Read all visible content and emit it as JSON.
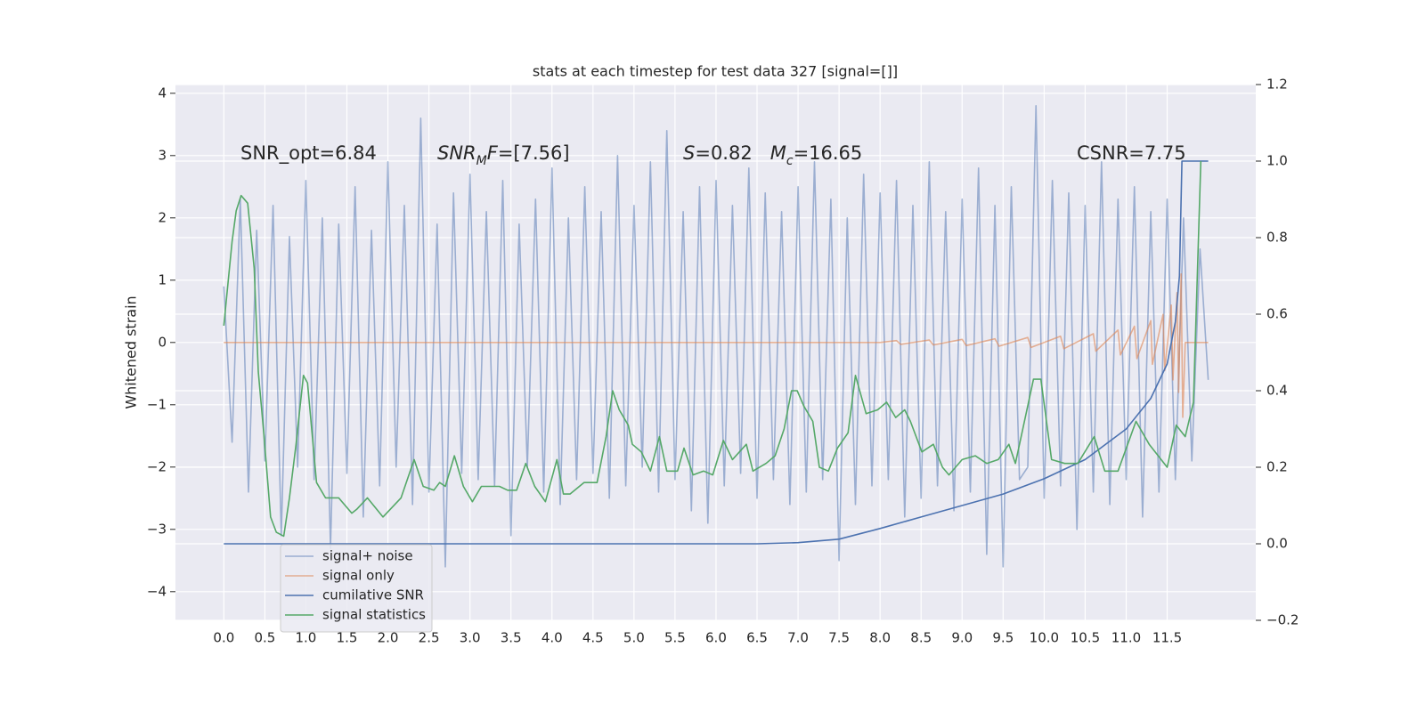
{
  "chart_data": {
    "type": "line",
    "title": "stats at each timestep for test data 327 [signal=[]]",
    "y_label": "Whitened strain",
    "xlim": [
      -0.59,
      12.58
    ],
    "ylim": [
      -4.46,
      4.14
    ],
    "y2lim": [
      -0.2,
      1.2
    ],
    "grid": true,
    "xticks": [
      {
        "value": 0,
        "label": "0.0"
      },
      0.5,
      {
        "value": 1,
        "label": "1.0"
      },
      1.5,
      {
        "value": 2,
        "label": "2.0"
      },
      2.5,
      {
        "value": 3,
        "label": "3.0"
      },
      3.5,
      {
        "value": 4,
        "label": "4.0"
      },
      4.5,
      {
        "value": 5,
        "label": "5.0"
      },
      5.5,
      {
        "value": 6,
        "label": "6.0"
      },
      6.5,
      {
        "value": 7,
        "label": "7.0"
      },
      7.5,
      {
        "value": 8,
        "label": "8.0"
      },
      8.5,
      {
        "value": 9,
        "label": "9.0"
      },
      9.5,
      {
        "value": 10,
        "label": "10.0"
      },
      10.5,
      {
        "value": 11,
        "label": "11.0"
      },
      11.5
    ],
    "yticks": [
      {
        "value": -4,
        "label": "−4"
      },
      {
        "value": -3,
        "label": "−3"
      },
      {
        "value": -2,
        "label": "−2"
      },
      {
        "value": -1,
        "label": "−1"
      },
      0,
      1,
      2,
      3,
      4
    ],
    "y2ticks": [
      {
        "value": -0.2,
        "label": "−0.2"
      },
      {
        "value": 0,
        "label": "0.0"
      },
      0.2,
      0.4,
      0.6,
      0.8,
      {
        "value": 1,
        "label": "1.0"
      },
      1.2
    ],
    "annotations": [
      {
        "parts": [
          {
            "text": "SNR_opt=6.84"
          }
        ]
      },
      {
        "parts": [
          {
            "text": "SNR",
            "italic": true
          },
          {
            "text": "M",
            "italic": true,
            "sub": true
          },
          {
            "text": "F",
            "italic": true
          },
          {
            "text": "=[7.56]"
          }
        ]
      },
      {
        "parts": [
          {
            "text": "S",
            "italic": true
          },
          {
            "text": "=0.82   "
          },
          {
            "text": "M",
            "italic": true
          },
          {
            "text": "c",
            "italic": true,
            "sub": true
          },
          {
            "text": "=16.65"
          }
        ]
      },
      {
        "parts": [
          {
            "text": "CSNR=7.75"
          }
        ]
      }
    ],
    "legend": "lower left",
    "series": [
      {
        "name": "signal+ noise",
        "color": "#4c72b0",
        "opacity": 0.5,
        "x": [
          0,
          0.1,
          0.2,
          0.3,
          0.4,
          0.5,
          0.6,
          0.7,
          0.8,
          0.9,
          1,
          1.1,
          1.2,
          1.3,
          1.4,
          1.5,
          1.6,
          1.7,
          1.8,
          1.9,
          2,
          2.1,
          2.2,
          2.3,
          2.4,
          2.5,
          2.6,
          2.7,
          2.8,
          2.9,
          3,
          3.1,
          3.2,
          3.3,
          3.4,
          3.5,
          3.6,
          3.7,
          3.8,
          3.9,
          4,
          4.1,
          4.2,
          4.3,
          4.4,
          4.5,
          4.6,
          4.7,
          4.8,
          4.9,
          5,
          5.1,
          5.2,
          5.3,
          5.4,
          5.5,
          5.6,
          5.7,
          5.8,
          5.9,
          6,
          6.1,
          6.2,
          6.3,
          6.4,
          6.5,
          6.6,
          6.7,
          6.8,
          6.9,
          7,
          7.1,
          7.2,
          7.3,
          7.4,
          7.5,
          7.6,
          7.7,
          7.8,
          7.9,
          8,
          8.1,
          8.2,
          8.3,
          8.4,
          8.5,
          8.6,
          8.7,
          8.8,
          8.9,
          9,
          9.1,
          9.2,
          9.3,
          9.4,
          9.5,
          9.6,
          9.7,
          9.8,
          9.9,
          10,
          10.1,
          10.2,
          10.3,
          10.4,
          10.5,
          10.6,
          10.7,
          10.8,
          10.9,
          11,
          11.1,
          11.2,
          11.3,
          11.4,
          11.5,
          11.6,
          11.7,
          11.8,
          11.9,
          12
        ],
        "values": [
          0.9,
          -1.6,
          2.3,
          -2.4,
          1.8,
          -1.9,
          2.2,
          -3.1,
          1.7,
          -2.0,
          2.6,
          -2.2,
          2.0,
          -3.3,
          1.9,
          -2.1,
          2.5,
          -2.8,
          1.8,
          -2.3,
          2.9,
          -2.0,
          2.2,
          -2.6,
          3.6,
          -2.4,
          1.9,
          -3.6,
          2.4,
          -2.1,
          2.7,
          -2.2,
          2.1,
          -2.3,
          2.6,
          -3.1,
          1.9,
          -2.0,
          2.3,
          -2.4,
          2.8,
          -2.6,
          2.0,
          -2.2,
          2.5,
          -2.1,
          2.1,
          -2.5,
          3.0,
          -2.3,
          2.2,
          -2.0,
          2.9,
          -2.4,
          3.4,
          -2.2,
          2.1,
          -2.7,
          2.5,
          -2.9,
          2.6,
          -2.3,
          2.2,
          -2.1,
          2.8,
          -2.5,
          2.4,
          -2.2,
          2.1,
          -2.6,
          2.5,
          -2.4,
          2.9,
          -2.2,
          2.3,
          -3.5,
          2.0,
          -2.6,
          2.7,
          -2.3,
          2.4,
          -2.2,
          2.6,
          -2.8,
          2.2,
          -2.5,
          2.9,
          -2.3,
          2.1,
          -2.7,
          2.3,
          -2.4,
          2.8,
          -3.4,
          2.2,
          -3.6,
          2.5,
          -2.2,
          -2.0,
          3.8,
          -2.5,
          2.6,
          -2.3,
          2.4,
          -3.0,
          2.2,
          -2.4,
          2.9,
          -2.6,
          2.3,
          -2.2,
          2.5,
          -2.8,
          2.1,
          -2.4,
          2.3,
          -2.2,
          2.0,
          -1.9,
          1.5,
          -0.6
        ]
      },
      {
        "name": "signal only",
        "color": "#dd8452",
        "opacity": 0.6,
        "x": [
          0,
          8.0,
          8.2,
          8.25,
          8.6,
          8.65,
          9.0,
          9.05,
          9.4,
          9.45,
          9.8,
          9.84,
          10.2,
          10.24,
          10.6,
          10.63,
          10.9,
          10.93,
          11.1,
          11.13,
          11.3,
          11.32,
          11.45,
          11.47,
          11.55,
          11.57,
          11.62,
          11.64,
          11.67,
          11.69,
          11.72,
          12.0
        ],
        "values": [
          0,
          0,
          0.03,
          -0.03,
          0.04,
          -0.04,
          0.05,
          -0.05,
          0.06,
          -0.06,
          0.08,
          -0.08,
          0.1,
          -0.1,
          0.14,
          -0.14,
          0.2,
          -0.2,
          0.26,
          -0.26,
          0.35,
          -0.35,
          0.45,
          -0.45,
          0.6,
          -0.6,
          0.8,
          -0.8,
          1.1,
          -1.2,
          0,
          0
        ]
      },
      {
        "name": "cumilative SNR",
        "color": "#4c72b0",
        "axis": "y2",
        "x": [
          0,
          6.5,
          7.0,
          7.5,
          8.0,
          8.5,
          9.0,
          9.5,
          10.0,
          10.5,
          11.0,
          11.3,
          11.5,
          11.6,
          11.65,
          11.68,
          12.0
        ],
        "values": [
          0,
          0,
          0.003,
          0.012,
          0.04,
          0.07,
          0.1,
          0.13,
          0.17,
          0.22,
          0.3,
          0.38,
          0.47,
          0.58,
          0.7,
          1.0,
          1.0
        ]
      },
      {
        "name": "signal statistics",
        "color": "#55a868",
        "axis": "y2",
        "x": [
          0,
          0.1,
          0.15,
          0.21,
          0.29,
          0.37,
          0.42,
          0.49,
          0.57,
          0.64,
          0.73,
          0.8,
          0.88,
          0.97,
          1.02,
          1.13,
          1.24,
          1.4,
          1.56,
          1.62,
          1.75,
          1.94,
          2.16,
          2.32,
          2.43,
          2.56,
          2.63,
          2.7,
          2.81,
          2.92,
          3.03,
          3.14,
          3.25,
          3.36,
          3.46,
          3.57,
          3.68,
          3.79,
          3.92,
          4.06,
          4.14,
          4.22,
          4.39,
          4.55,
          4.66,
          4.74,
          4.82,
          4.93,
          4.98,
          5.09,
          5.2,
          5.31,
          5.4,
          5.53,
          5.61,
          5.72,
          5.85,
          5.96,
          6.09,
          6.2,
          6.37,
          6.45,
          6.61,
          6.72,
          6.83,
          6.92,
          6.99,
          7.07,
          7.18,
          7.26,
          7.37,
          7.48,
          7.61,
          7.7,
          7.83,
          7.97,
          8.08,
          8.19,
          8.3,
          8.37,
          8.51,
          8.65,
          8.76,
          8.84,
          9.0,
          9.16,
          9.3,
          9.44,
          9.57,
          9.65,
          9.87,
          9.96,
          10.09,
          10.25,
          10.41,
          10.61,
          10.74,
          10.9,
          11.12,
          11.28,
          11.5,
          11.61,
          11.72,
          11.82,
          11.91
        ],
        "values": [
          0.57,
          0.79,
          0.87,
          0.91,
          0.89,
          0.72,
          0.45,
          0.28,
          0.07,
          0.03,
          0.02,
          0.12,
          0.26,
          0.44,
          0.42,
          0.16,
          0.12,
          0.12,
          0.08,
          0.09,
          0.12,
          0.07,
          0.12,
          0.22,
          0.15,
          0.14,
          0.16,
          0.15,
          0.23,
          0.15,
          0.11,
          0.15,
          0.15,
          0.15,
          0.14,
          0.14,
          0.21,
          0.15,
          0.11,
          0.22,
          0.13,
          0.13,
          0.16,
          0.16,
          0.28,
          0.4,
          0.35,
          0.31,
          0.26,
          0.24,
          0.19,
          0.28,
          0.19,
          0.19,
          0.25,
          0.18,
          0.19,
          0.18,
          0.27,
          0.22,
          0.26,
          0.19,
          0.21,
          0.23,
          0.3,
          0.4,
          0.4,
          0.36,
          0.32,
          0.2,
          0.19,
          0.25,
          0.29,
          0.44,
          0.34,
          0.35,
          0.37,
          0.33,
          0.35,
          0.32,
          0.24,
          0.26,
          0.2,
          0.18,
          0.22,
          0.23,
          0.21,
          0.22,
          0.26,
          0.21,
          0.43,
          0.43,
          0.22,
          0.21,
          0.21,
          0.28,
          0.19,
          0.19,
          0.32,
          0.26,
          0.2,
          0.31,
          0.28,
          0.37,
          1.0
        ]
      }
    ]
  }
}
